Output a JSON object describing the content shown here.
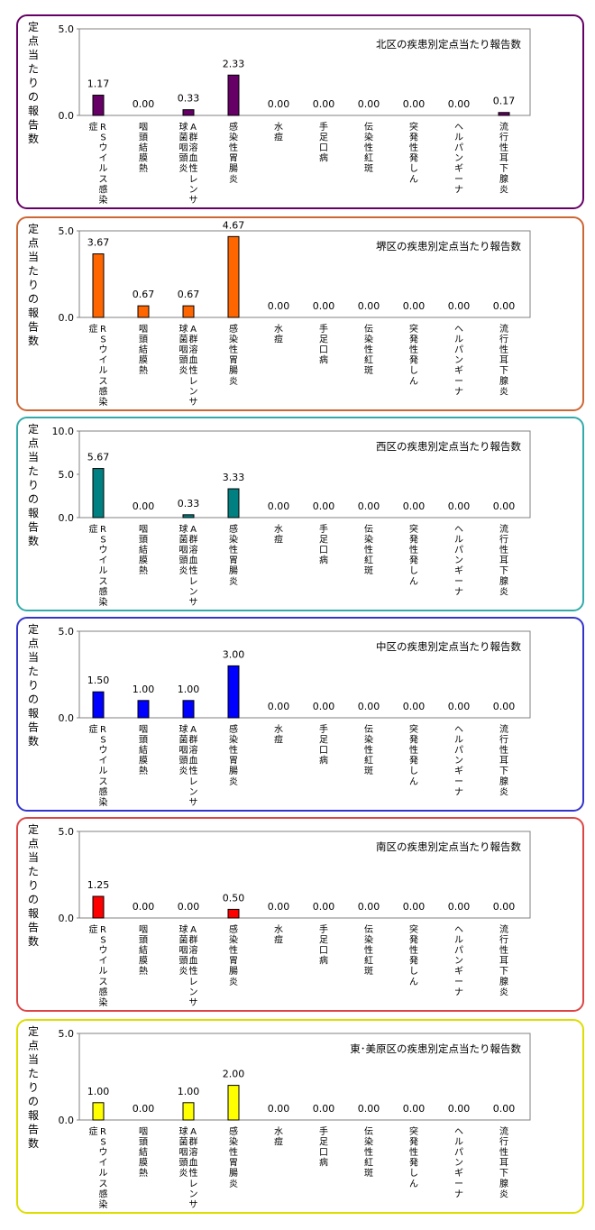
{
  "chart_data": [
    {
      "type": "bar",
      "title": "北区の疾患別定点当たり報告数",
      "ylabel": "定点当たりの報告数",
      "ylim": [
        0,
        5
      ],
      "yticks": [
        "5.0",
        "0.0"
      ],
      "color": "#660066",
      "categories": [
        "RSウイルス感染症",
        "咽頭結膜熱",
        "A群溶血性レンサ球菌咽頭炎",
        "感染性胃腸炎",
        "水痘",
        "手足口病",
        "伝染性紅斑",
        "突発性発しん",
        "ヘルパンギーナ",
        "流行性耳下腺炎"
      ],
      "values": [
        1.17,
        0.0,
        0.33,
        2.33,
        0.0,
        0.0,
        0.0,
        0.0,
        0.0,
        0.17
      ],
      "labels": [
        "1.17",
        "0.00",
        "0.33",
        "2.33",
        "0.00",
        "0.00",
        "0.00",
        "0.00",
        "0.00",
        "0.17"
      ],
      "border_color": "#660066"
    },
    {
      "type": "bar",
      "title": "堺区の疾患別定点当たり報告数",
      "ylabel": "定点当たりの報告数",
      "ylim": [
        0,
        5
      ],
      "yticks": [
        "5.0",
        "0.0"
      ],
      "color": "#FF6600",
      "categories": [
        "RSウイルス感染症",
        "咽頭結膜熱",
        "A群溶血性レンサ球菌咽頭炎",
        "感染性胃腸炎",
        "水痘",
        "手足口病",
        "伝染性紅斑",
        "突発性発しん",
        "ヘルパンギーナ",
        "流行性耳下腺炎"
      ],
      "values": [
        3.67,
        0.67,
        0.67,
        4.67,
        0.0,
        0.0,
        0.0,
        0.0,
        0.0,
        0.0
      ],
      "labels": [
        "3.67",
        "0.67",
        "0.67",
        "4.67",
        "0.00",
        "0.00",
        "0.00",
        "0.00",
        "0.00",
        "0.00"
      ],
      "border_color": "#CC6633"
    },
    {
      "type": "bar",
      "title": "西区の疾患別定点当たり報告数",
      "ylabel": "定点当たりの報告数",
      "ylim": [
        0,
        10
      ],
      "yticks": [
        "10.0",
        "5.0",
        "0.0"
      ],
      "color": "#008080",
      "categories": [
        "RSウイルス感染症",
        "咽頭結膜熱",
        "A群溶血性レンサ球菌咽頭炎",
        "感染性胃腸炎",
        "水痘",
        "手足口病",
        "伝染性紅斑",
        "突発性発しん",
        "ヘルパンギーナ",
        "流行性耳下腺炎"
      ],
      "values": [
        5.67,
        0.0,
        0.33,
        3.33,
        0.0,
        0.0,
        0.0,
        0.0,
        0.0,
        0.0
      ],
      "labels": [
        "5.67",
        "0.00",
        "0.33",
        "3.33",
        "0.00",
        "0.00",
        "0.00",
        "0.00",
        "0.00",
        "0.00"
      ],
      "border_color": "#33AAAA"
    },
    {
      "type": "bar",
      "title": "中区の疾患別定点当たり報告数",
      "ylabel": "定点当たりの報告数",
      "ylim": [
        0,
        5
      ],
      "yticks": [
        "5.0",
        "0.0"
      ],
      "color": "#0000FF",
      "categories": [
        "RSウイルス感染症",
        "咽頭結膜熱",
        "A群溶血性レンサ球菌咽頭炎",
        "感染性胃腸炎",
        "水痘",
        "手足口病",
        "伝染性紅斑",
        "突発性発しん",
        "ヘルパンギーナ",
        "流行性耳下腺炎"
      ],
      "values": [
        1.5,
        1.0,
        1.0,
        3.0,
        0.0,
        0.0,
        0.0,
        0.0,
        0.0,
        0.0
      ],
      "labels": [
        "1.50",
        "1.00",
        "1.00",
        "3.00",
        "0.00",
        "0.00",
        "0.00",
        "0.00",
        "0.00",
        "0.00"
      ],
      "border_color": "#3333CC"
    },
    {
      "type": "bar",
      "title": "南区の疾患別定点当たり報告数",
      "ylabel": "定点当たりの報告数",
      "ylim": [
        0,
        5
      ],
      "yticks": [
        "5.0",
        "0.0"
      ],
      "color": "#FF0000",
      "categories": [
        "RSウイルス感染症",
        "咽頭結膜熱",
        "A群溶血性レンサ球菌咽頭炎",
        "感染性胃腸炎",
        "水痘",
        "手足口病",
        "伝染性紅斑",
        "突発性発しん",
        "ヘルパンギーナ",
        "流行性耳下腺炎"
      ],
      "values": [
        1.25,
        0.0,
        0.0,
        0.5,
        0.0,
        0.0,
        0.0,
        0.0,
        0.0,
        0.0
      ],
      "labels": [
        "1.25",
        "0.00",
        "0.00",
        "0.50",
        "0.00",
        "0.00",
        "0.00",
        "0.00",
        "0.00",
        "0.00"
      ],
      "border_color": "#DD4444"
    },
    {
      "type": "bar",
      "title": "東･美原区の疾患別定点当たり報告数",
      "ylabel": "定点当たりの報告数",
      "ylim": [
        0,
        5
      ],
      "yticks": [
        "5.0",
        "0.0"
      ],
      "color": "#FFFF00",
      "categories": [
        "RSウイルス感染症",
        "咽頭結膜熱",
        "A群溶血性レンサ球菌咽頭炎",
        "感染性胃腸炎",
        "水痘",
        "手足口病",
        "伝染性紅斑",
        "突発性発しん",
        "ヘルパンギーナ",
        "流行性耳下腺炎"
      ],
      "values": [
        1.0,
        0.0,
        1.0,
        2.0,
        0.0,
        0.0,
        0.0,
        0.0,
        0.0,
        0.0
      ],
      "labels": [
        "1.00",
        "0.00",
        "1.00",
        "2.00",
        "0.00",
        "0.00",
        "0.00",
        "0.00",
        "0.00",
        "0.00"
      ],
      "border_color": "#DDDD00"
    }
  ]
}
